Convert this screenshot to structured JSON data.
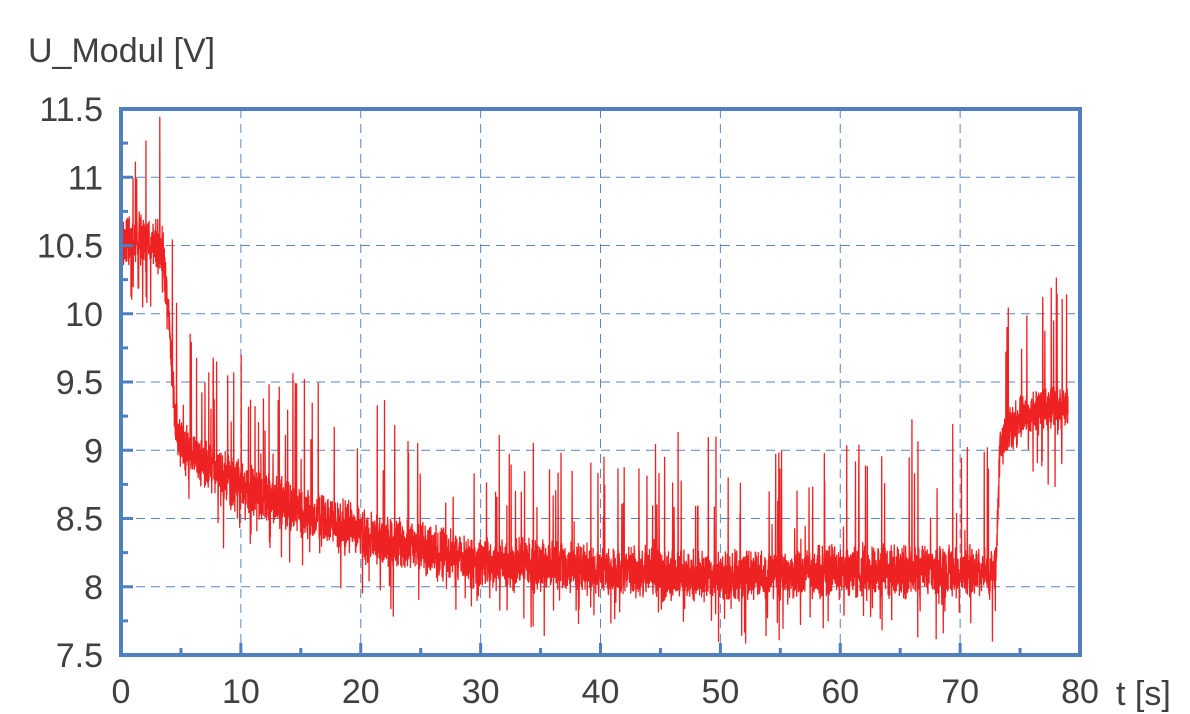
{
  "chart_data": {
    "type": "line",
    "title": "",
    "ylabel": "U_Modul [V]",
    "xlabel": "t [s]",
    "xlim": [
      0,
      80
    ],
    "ylim": [
      7.5,
      11.5
    ],
    "x_ticks": [
      0,
      10,
      20,
      30,
      40,
      50,
      60,
      70,
      80
    ],
    "x_tick_labels": [
      "0",
      "10",
      "20",
      "30",
      "40",
      "50",
      "60",
      "70",
      "80"
    ],
    "y_ticks": [
      7.5,
      8,
      8.5,
      9,
      9.5,
      10,
      10.5,
      11,
      11.5
    ],
    "y_tick_labels": [
      "7.5",
      "8",
      "8.5",
      "9",
      "9.5",
      "10",
      "10.5",
      "11",
      "11.5"
    ],
    "grid": true,
    "legend": "none",
    "colors": {
      "series": "#ee2222",
      "frame": "#4f7fbf",
      "grid": "#5a86c0",
      "text": "#404040"
    },
    "series": [
      {
        "x": [
          0,
          1,
          2,
          3,
          3.5,
          4,
          4.5,
          5,
          6,
          8,
          10,
          12,
          15,
          18,
          20,
          22,
          25,
          28,
          30,
          35,
          40,
          45,
          50,
          55,
          60,
          65,
          70,
          73,
          73.3,
          74,
          75,
          76,
          78,
          79
        ],
        "values": [
          10.55,
          10.52,
          10.55,
          10.5,
          10.45,
          10.0,
          9.2,
          9.05,
          8.95,
          8.85,
          8.75,
          8.65,
          8.55,
          8.45,
          8.4,
          8.32,
          8.28,
          8.22,
          8.18,
          8.15,
          8.12,
          8.1,
          8.08,
          8.1,
          8.12,
          8.12,
          8.12,
          8.1,
          8.95,
          9.15,
          9.22,
          9.28,
          9.32,
          9.35
        ]
      }
    ]
  }
}
